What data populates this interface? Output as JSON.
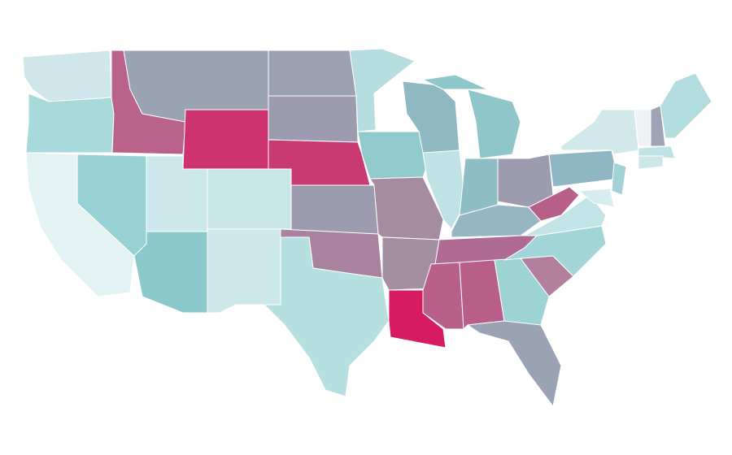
{
  "map": {
    "fills": [
      "#cfe7ea",
      "#a8dadc",
      "#e3f3f4",
      "#97d1d3",
      "#b8628c",
      "#9aa3b3",
      "#cc336f",
      "#cde8ea",
      "#c9e7e9",
      "#8bc9cc",
      "#cde8ea",
      "#9ba1b2",
      "#9c9bb0",
      "#c83a72",
      "#9c9bb0",
      "#a9829e",
      "#b6dfe0",
      "#b5dcdf",
      "#91cacd",
      "#a68ca1",
      "#a48ea2",
      "#d81b60",
      "#8fb8c2",
      "#c1e2e4",
      "#8ec6ca",
      "#8ec6ca",
      "#8fbdc6",
      "#9d9bb0",
      "#96b6c4",
      "#b06b95",
      "#b8608a",
      "#b75f89",
      "#9ed3d4",
      "#9aa3b3",
      "#b27f9d",
      "#a2d5d8",
      "#c3e4e6",
      "#b75f88",
      "#8fb6c3",
      "#d1e9eb",
      "#a2d2d5",
      "#d7ecee",
      "#eef2f4",
      "#9ea3b5",
      "#b2dcde",
      "#bfe3e5",
      "#cde7e9"
    ]
  }
}
